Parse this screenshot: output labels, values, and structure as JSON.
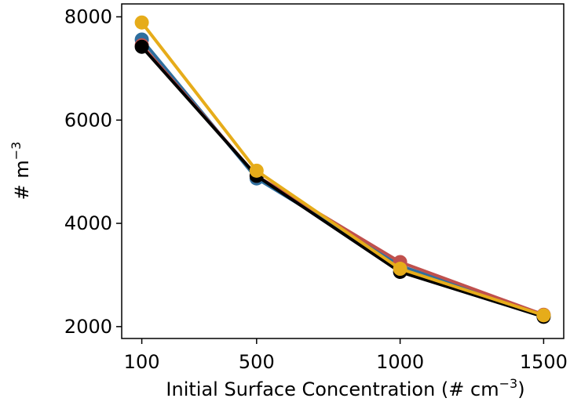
{
  "chart_data": {
    "type": "line",
    "x": [
      100,
      500,
      1000,
      1500
    ],
    "series": [
      {
        "color": "#2e6e9e",
        "values": [
          7560,
          4870,
          3180,
          2220
        ]
      },
      {
        "color": "#c0504d",
        "values": [
          7450,
          4920,
          3250,
          2230
        ]
      },
      {
        "color": "#000000",
        "values": [
          7420,
          4920,
          3060,
          2190
        ]
      },
      {
        "color": "#e6ac1a",
        "values": [
          7890,
          5020,
          3120,
          2220
        ]
      }
    ],
    "xlim": [
      30,
      1570
    ],
    "xticks": [
      100,
      500,
      1000,
      1500
    ],
    "ylim": [
      1770,
      8250
    ],
    "yticks": [
      2000,
      4000,
      6000,
      8000
    ],
    "xlabel": [
      "Initial Surface Concentration (# cm",
      "−3",
      ")"
    ],
    "ylabel": [
      "# m",
      "−3"
    ]
  }
}
